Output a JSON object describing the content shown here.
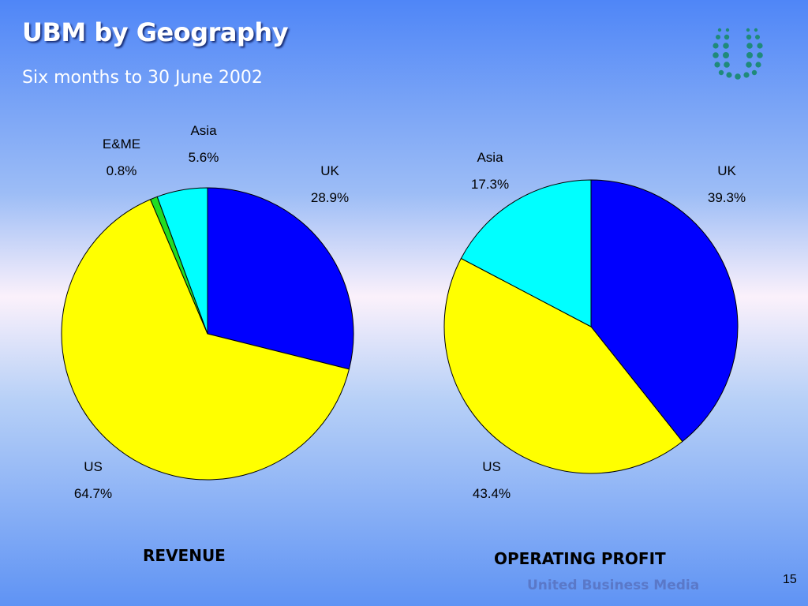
{
  "header": {
    "title": "UBM by Geography",
    "subtitle": "Six months to 30 June 2002"
  },
  "logo": {
    "icon": "ubm-dots-logo-icon",
    "color": "#1f8a7a"
  },
  "chart_data": [
    {
      "type": "pie",
      "title": "REVENUE",
      "slices": [
        {
          "label": "UK",
          "value": 28.9,
          "display": "28.9%",
          "color": "#0000ff"
        },
        {
          "label": "US",
          "value": 64.7,
          "display": "64.7%",
          "color": "#ffff00"
        },
        {
          "label": "E&ME",
          "value": 0.8,
          "display": "0.8%",
          "color": "#22dd22"
        },
        {
          "label": "Asia",
          "value": 5.6,
          "display": "5.6%",
          "color": "#00ffff"
        }
      ]
    },
    {
      "type": "pie",
      "title": "OPERATING PROFIT",
      "slices": [
        {
          "label": "UK",
          "value": 39.3,
          "display": "39.3%",
          "color": "#0000ff"
        },
        {
          "label": "US",
          "value": 43.4,
          "display": "43.4%",
          "color": "#ffff00"
        },
        {
          "label": "Asia",
          "value": 17.3,
          "display": "17.3%",
          "color": "#00ffff"
        }
      ]
    }
  ],
  "footer": {
    "brand": "United Business Media",
    "page_number": "15"
  }
}
